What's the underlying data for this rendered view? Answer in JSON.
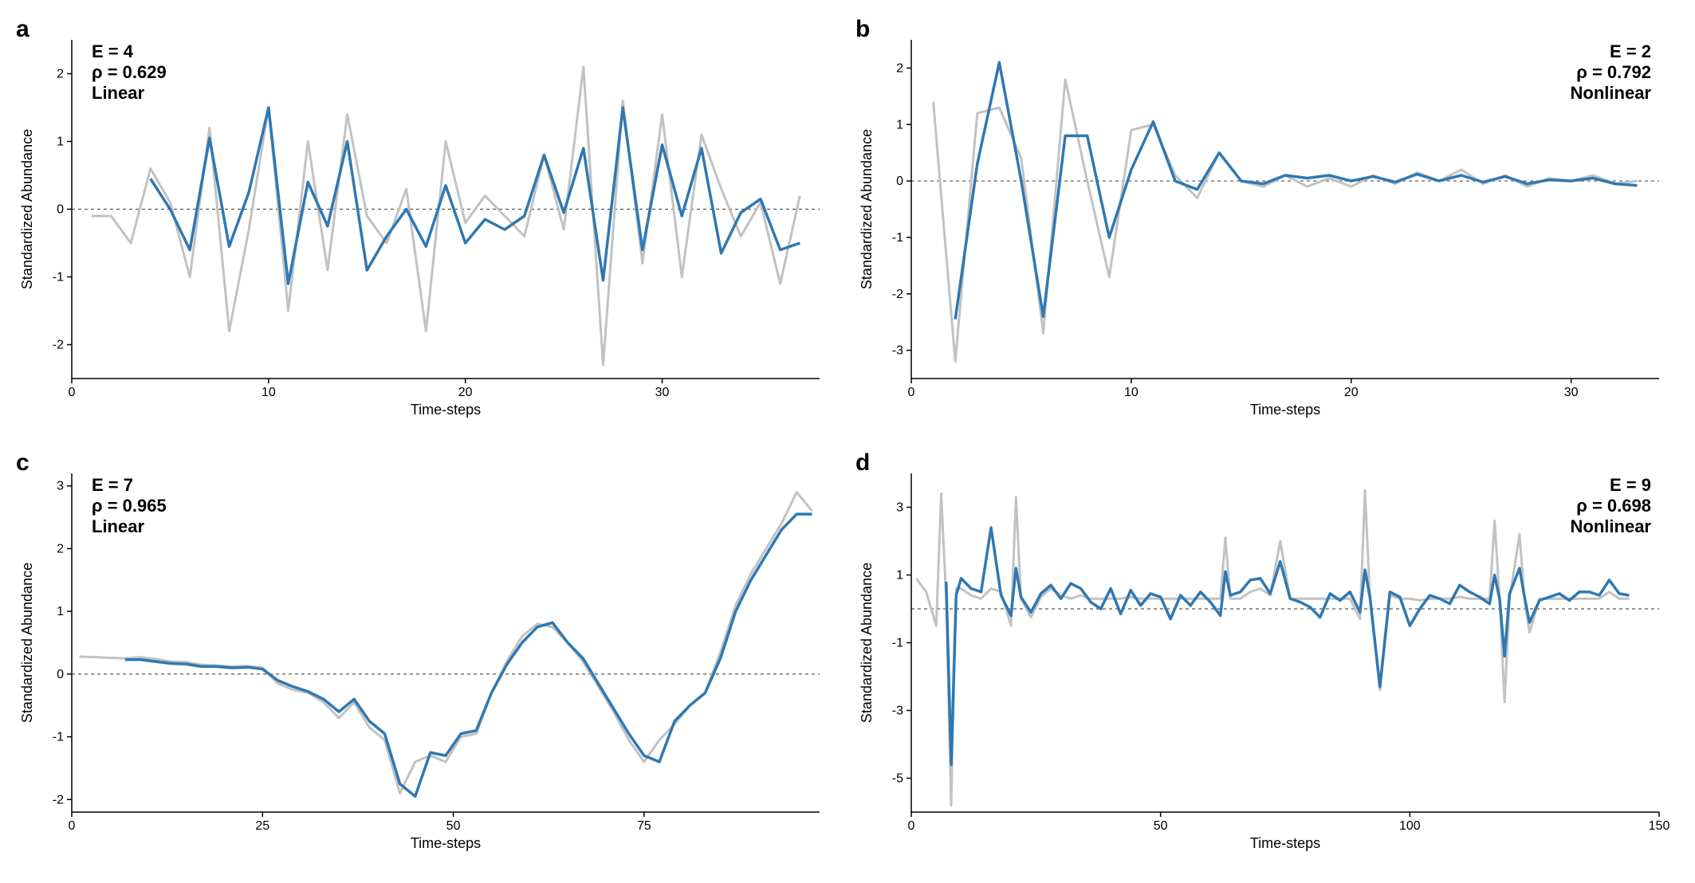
{
  "global": {
    "background_color": "#ffffff",
    "font_family": "Arial",
    "xlabel": "Time-steps",
    "ylabel": "Standardized Abundance",
    "xlabel_fontsize": 18,
    "ylabel_fontsize": 18,
    "tick_fontsize": 16,
    "letter_fontsize": 30
  },
  "colors": {
    "series_gray": "#c2c2c2",
    "series_blue": "#2f78b2",
    "axis": "#000000",
    "zero_dash": "#555555"
  },
  "line_widths": {
    "gray": 3,
    "blue": 3.5,
    "axis": 1.5,
    "zero": 1.2
  },
  "panels": {
    "a": {
      "letter": "a",
      "annotations": {
        "E": "E = 4",
        "rho": "ρ = 0.629",
        "type": "Linear",
        "position": "left"
      },
      "xlim": [
        0,
        38
      ],
      "ylim": [
        -2.5,
        2.5
      ],
      "xticks": [
        0,
        10,
        20,
        30
      ],
      "yticks": [
        -2,
        -1,
        0,
        1,
        2
      ],
      "type": "line",
      "series": {
        "gray": {
          "x": [
            1,
            2,
            3,
            4,
            5,
            6,
            7,
            8,
            9,
            10,
            11,
            12,
            13,
            14,
            15,
            16,
            17,
            18,
            19,
            20,
            21,
            22,
            23,
            24,
            25,
            26,
            27,
            28,
            29,
            30,
            31,
            32,
            33,
            34,
            35,
            36,
            37
          ],
          "y": [
            -0.1,
            -0.1,
            -0.5,
            0.6,
            0.1,
            -1.0,
            1.2,
            -1.8,
            -0.3,
            1.5,
            -1.5,
            1.0,
            -0.9,
            1.4,
            -0.1,
            -0.5,
            0.3,
            -1.8,
            1.0,
            -0.2,
            0.2,
            -0.1,
            -0.4,
            0.8,
            -0.3,
            2.1,
            -2.3,
            1.6,
            -0.8,
            1.4,
            -1.0,
            1.1,
            0.3,
            -0.4,
            0.1,
            -1.1,
            0.2
          ]
        },
        "blue": {
          "x": [
            4,
            5,
            6,
            7,
            8,
            9,
            10,
            11,
            12,
            13,
            14,
            15,
            16,
            17,
            18,
            19,
            20,
            21,
            22,
            23,
            24,
            25,
            26,
            27,
            28,
            29,
            30,
            31,
            32,
            33,
            34,
            35,
            36,
            37
          ],
          "y": [
            0.45,
            0.0,
            -0.6,
            1.05,
            -0.55,
            0.25,
            1.5,
            -1.1,
            0.4,
            -0.25,
            1.0,
            -0.9,
            -0.4,
            0.0,
            -0.55,
            0.35,
            -0.5,
            -0.15,
            -0.3,
            -0.1,
            0.8,
            -0.05,
            0.9,
            -1.05,
            1.5,
            -0.6,
            0.95,
            -0.1,
            0.9,
            -0.65,
            -0.05,
            0.15,
            -0.6,
            -0.5
          ]
        }
      }
    },
    "b": {
      "letter": "b",
      "annotations": {
        "E": "E = 2",
        "rho": "ρ = 0.792",
        "type": "Nonlinear",
        "position": "right"
      },
      "xlim": [
        0,
        34
      ],
      "ylim": [
        -3.5,
        2.5
      ],
      "xticks": [
        0,
        10,
        20,
        30
      ],
      "yticks": [
        -3,
        -2,
        -1,
        0,
        1,
        2
      ],
      "type": "line",
      "series": {
        "gray": {
          "x": [
            1,
            2,
            3,
            4,
            5,
            6,
            7,
            8,
            9,
            10,
            11,
            12,
            13,
            14,
            15,
            16,
            17,
            18,
            19,
            20,
            21,
            22,
            23,
            24,
            25,
            26,
            27,
            28,
            29,
            30,
            31,
            32,
            33
          ],
          "y": [
            1.4,
            -3.2,
            1.2,
            1.3,
            0.4,
            -2.7,
            1.8,
            0.0,
            -1.7,
            0.9,
            1.0,
            0.1,
            -0.3,
            0.5,
            0.0,
            -0.1,
            0.1,
            -0.1,
            0.05,
            -0.1,
            0.1,
            -0.05,
            0.15,
            0.0,
            0.2,
            -0.05,
            0.1,
            -0.1,
            0.05,
            0.0,
            0.1,
            -0.05,
            0.0
          ]
        },
        "blue": {
          "x": [
            2,
            3,
            4,
            5,
            6,
            7,
            8,
            9,
            10,
            11,
            12,
            13,
            14,
            15,
            16,
            17,
            18,
            19,
            20,
            21,
            22,
            23,
            24,
            25,
            26,
            27,
            28,
            29,
            30,
            31,
            32,
            33
          ],
          "y": [
            -2.45,
            0.3,
            2.1,
            0.0,
            -2.4,
            0.8,
            0.8,
            -1.0,
            0.2,
            1.05,
            0.0,
            -0.15,
            0.5,
            0.0,
            -0.05,
            0.1,
            0.05,
            0.1,
            0.0,
            0.08,
            -0.02,
            0.12,
            0.0,
            0.1,
            -0.02,
            0.08,
            -0.05,
            0.02,
            0.0,
            0.05,
            -0.05,
            -0.08
          ]
        }
      }
    },
    "c": {
      "letter": "c",
      "annotations": {
        "E": "E = 7",
        "rho": "ρ = 0.965",
        "type": "Linear",
        "position": "left"
      },
      "xlim": [
        0,
        98
      ],
      "ylim": [
        -2.2,
        3.2
      ],
      "xticks": [
        0,
        25,
        50,
        75
      ],
      "yticks": [
        -2,
        -1,
        0,
        1,
        2,
        3
      ],
      "type": "line",
      "series": {
        "gray": {
          "x": [
            1,
            3,
            5,
            7,
            9,
            11,
            13,
            15,
            17,
            19,
            21,
            23,
            25,
            27,
            29,
            31,
            33,
            35,
            37,
            39,
            41,
            43,
            45,
            47,
            49,
            51,
            53,
            55,
            57,
            59,
            61,
            63,
            65,
            67,
            69,
            71,
            73,
            75,
            77,
            79,
            81,
            83,
            85,
            87,
            89,
            91,
            93,
            95,
            97
          ],
          "y": [
            0.28,
            0.27,
            0.26,
            0.25,
            0.27,
            0.24,
            0.2,
            0.19,
            0.15,
            0.14,
            0.12,
            0.13,
            0.1,
            -0.15,
            -0.25,
            -0.3,
            -0.45,
            -0.7,
            -0.45,
            -0.85,
            -1.05,
            -1.9,
            -1.4,
            -1.3,
            -1.4,
            -1.0,
            -0.95,
            -0.3,
            0.2,
            0.6,
            0.8,
            0.75,
            0.5,
            0.2,
            -0.2,
            -0.6,
            -1.05,
            -1.4,
            -1.05,
            -0.8,
            -0.5,
            -0.3,
            0.35,
            1.1,
            1.6,
            2.0,
            2.4,
            2.9,
            2.6
          ]
        },
        "blue": {
          "x": [
            7,
            9,
            11,
            13,
            15,
            17,
            19,
            21,
            23,
            25,
            27,
            29,
            31,
            33,
            35,
            37,
            39,
            41,
            43,
            45,
            47,
            49,
            51,
            53,
            55,
            57,
            59,
            61,
            63,
            65,
            67,
            69,
            71,
            73,
            75,
            77,
            79,
            81,
            83,
            85,
            87,
            89,
            91,
            93,
            95,
            97
          ],
          "y": [
            0.23,
            0.23,
            0.2,
            0.17,
            0.16,
            0.12,
            0.12,
            0.1,
            0.11,
            0.08,
            -0.1,
            -0.2,
            -0.28,
            -0.4,
            -0.6,
            -0.4,
            -0.75,
            -0.95,
            -1.75,
            -1.95,
            -1.25,
            -1.3,
            -0.95,
            -0.9,
            -0.3,
            0.15,
            0.5,
            0.75,
            0.82,
            0.5,
            0.25,
            -0.15,
            -0.55,
            -0.95,
            -1.3,
            -1.4,
            -0.75,
            -0.5,
            -0.3,
            0.25,
            1.0,
            1.5,
            1.9,
            2.3,
            2.55,
            2.55
          ]
        }
      }
    },
    "d": {
      "letter": "d",
      "annotations": {
        "E": "E = 9",
        "rho": "ρ = 0.698",
        "type": "Nonlinear",
        "position": "right"
      },
      "xlim": [
        0,
        150
      ],
      "ylim": [
        -6,
        4
      ],
      "xticks": [
        0,
        50,
        100,
        150
      ],
      "yticks": [
        -5,
        -3,
        -1,
        1,
        3
      ],
      "type": "line",
      "series": {
        "gray": {
          "x": [
            1,
            3,
            5,
            6,
            7,
            8,
            9,
            10,
            12,
            14,
            16,
            18,
            20,
            21,
            22,
            24,
            26,
            28,
            30,
            32,
            34,
            36,
            38,
            40,
            42,
            44,
            46,
            48,
            50,
            52,
            54,
            56,
            58,
            60,
            62,
            63,
            64,
            66,
            68,
            70,
            72,
            74,
            76,
            78,
            80,
            82,
            84,
            86,
            88,
            90,
            91,
            92,
            94,
            96,
            98,
            100,
            102,
            104,
            106,
            108,
            110,
            112,
            114,
            116,
            117,
            118,
            119,
            120,
            122,
            123,
            124,
            126,
            128,
            130,
            132,
            134,
            136,
            138,
            140,
            142,
            144
          ],
          "y": [
            0.9,
            0.5,
            -0.5,
            3.4,
            0.3,
            -5.8,
            0.6,
            0.6,
            0.4,
            0.3,
            0.6,
            0.5,
            -0.5,
            3.3,
            0.3,
            -0.25,
            0.35,
            0.6,
            0.4,
            0.3,
            0.4,
            0.3,
            0.3,
            0.3,
            0.3,
            0.35,
            0.3,
            0.3,
            0.3,
            0.3,
            0.3,
            0.3,
            0.3,
            0.3,
            0.3,
            2.1,
            0.3,
            0.3,
            0.5,
            0.6,
            0.4,
            2.0,
            0.3,
            0.3,
            0.3,
            0.3,
            0.3,
            0.3,
            0.3,
            -0.3,
            3.5,
            0.3,
            -2.4,
            0.4,
            0.3,
            0.3,
            0.25,
            0.3,
            0.3,
            0.3,
            0.35,
            0.3,
            0.3,
            0.3,
            2.6,
            0.3,
            -2.75,
            0.3,
            2.2,
            0.3,
            -0.7,
            0.3,
            0.3,
            0.3,
            0.3,
            0.3,
            0.3,
            0.3,
            0.5,
            0.3,
            0.3
          ]
        },
        "blue": {
          "x": [
            7,
            8,
            9,
            10,
            12,
            14,
            16,
            18,
            20,
            21,
            22,
            24,
            26,
            28,
            30,
            32,
            34,
            36,
            38,
            40,
            42,
            44,
            46,
            48,
            50,
            52,
            54,
            56,
            58,
            60,
            62,
            63,
            64,
            66,
            68,
            70,
            72,
            74,
            76,
            78,
            80,
            82,
            84,
            86,
            88,
            90,
            91,
            92,
            94,
            96,
            98,
            100,
            102,
            104,
            106,
            108,
            110,
            112,
            114,
            116,
            117,
            118,
            119,
            120,
            122,
            123,
            124,
            126,
            128,
            130,
            132,
            134,
            136,
            138,
            140,
            142,
            144
          ],
          "y": [
            0.8,
            -4.6,
            0.4,
            0.9,
            0.6,
            0.5,
            2.4,
            0.4,
            -0.2,
            1.2,
            0.35,
            -0.1,
            0.45,
            0.7,
            0.3,
            0.75,
            0.6,
            0.2,
            0.0,
            0.6,
            -0.15,
            0.55,
            0.1,
            0.45,
            0.35,
            -0.3,
            0.4,
            0.1,
            0.5,
            0.2,
            -0.2,
            1.1,
            0.4,
            0.5,
            0.85,
            0.9,
            0.45,
            1.4,
            0.3,
            0.2,
            0.05,
            -0.25,
            0.45,
            0.25,
            0.5,
            -0.1,
            1.15,
            0.35,
            -2.3,
            0.5,
            0.35,
            -0.5,
            0.0,
            0.4,
            0.3,
            0.15,
            0.7,
            0.5,
            0.35,
            0.15,
            1.0,
            0.3,
            -1.4,
            0.45,
            1.2,
            0.35,
            -0.4,
            0.25,
            0.35,
            0.45,
            0.25,
            0.5,
            0.5,
            0.4,
            0.85,
            0.45,
            0.4
          ]
        }
      }
    }
  }
}
